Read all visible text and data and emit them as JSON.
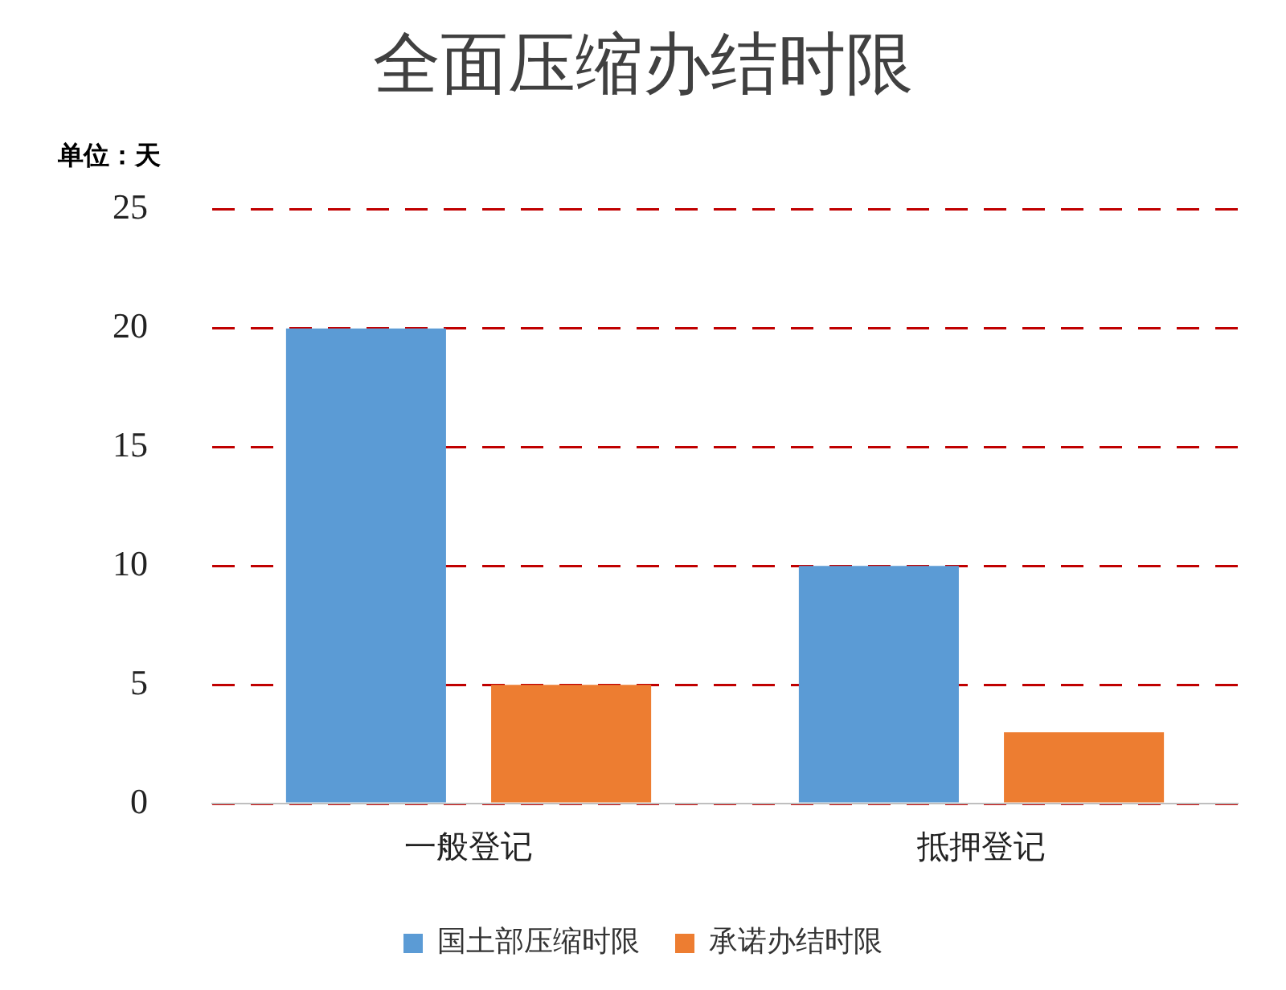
{
  "chart_data": {
    "type": "bar",
    "title": "全面压缩办结时限",
    "annotations": [
      "单位：天"
    ],
    "categories": [
      "一般登记",
      "抵押登记"
    ],
    "series": [
      {
        "name": "国土部压缩时限",
        "color": "#5b9bd5",
        "values": [
          20,
          10
        ]
      },
      {
        "name": "承诺办结时限",
        "color": "#ed7d31",
        "values": [
          5,
          3
        ]
      }
    ],
    "ylim": [
      0,
      25
    ],
    "yticks": [
      0,
      5,
      10,
      15,
      20,
      25
    ],
    "grid": "y",
    "legend": "bottom"
  }
}
